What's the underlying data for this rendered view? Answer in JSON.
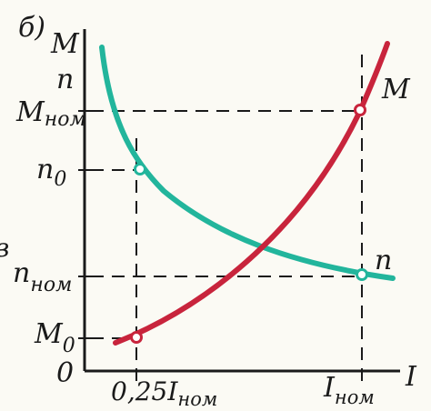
{
  "figure": {
    "panel_label": "б)",
    "left_cut_char": "в",
    "axis": {
      "y_labels": [
        "M",
        "n"
      ],
      "x_label": "I",
      "origin": "0"
    },
    "y_ticks": {
      "m_nom": {
        "main": "M",
        "sub": "ном"
      },
      "n_0": {
        "main": "n",
        "sub": "0"
      },
      "n_nom": {
        "main": "n",
        "sub": "ном"
      },
      "m_0": {
        "main": "M",
        "sub": "0"
      }
    },
    "x_ticks": {
      "quarter": {
        "main": "0,25I",
        "sub": "ном"
      },
      "i_nom": {
        "main": "I",
        "sub": "ном"
      }
    },
    "curve_labels": {
      "torque": "M",
      "speed": "n"
    },
    "colors": {
      "torque_curve": "#c8243c",
      "speed_curve": "#22b59c",
      "axes": "#1a1a1a",
      "background": "#fbfaf4"
    }
  }
}
